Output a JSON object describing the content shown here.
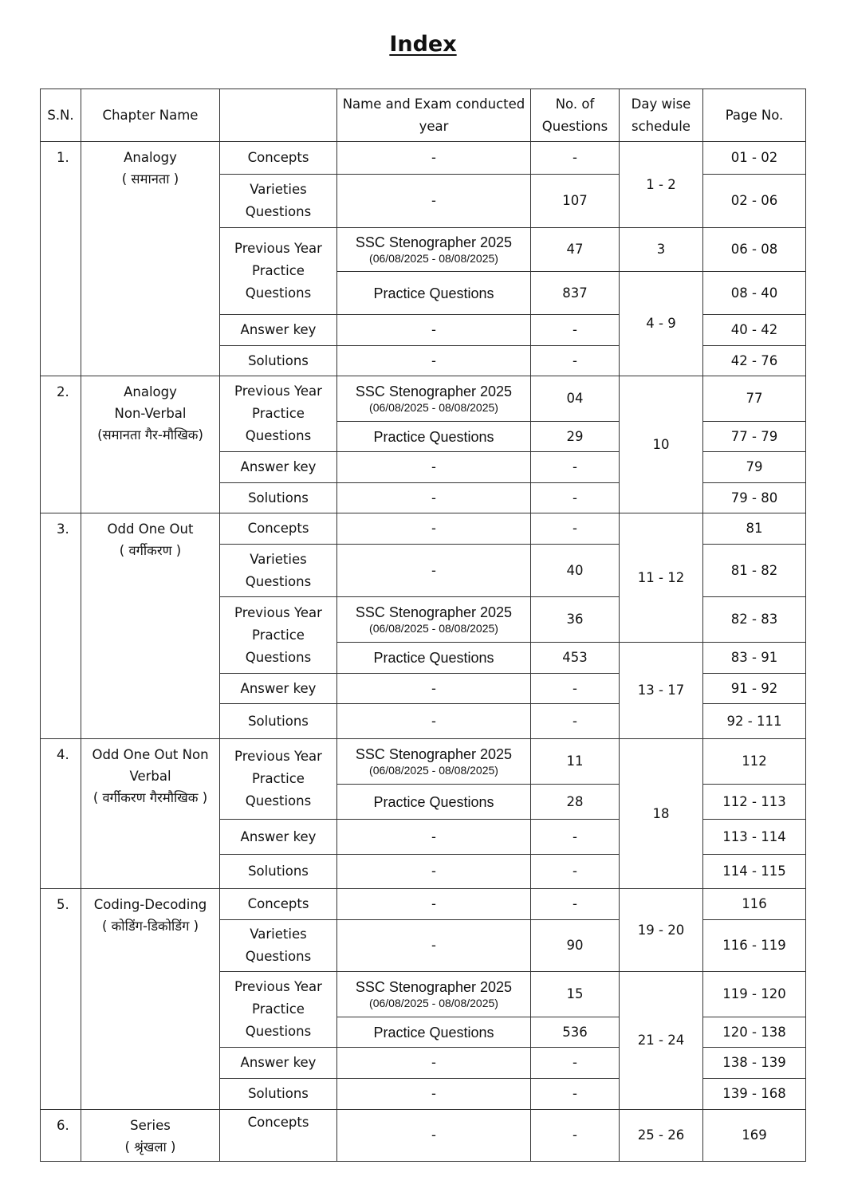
{
  "title": "Index",
  "headers": [
    "S.N.",
    "Chapter Name",
    "",
    "Name and Exam conducted year",
    "No. of Questions",
    "Day wise schedule",
    "Page No."
  ],
  "chapters": [
    {
      "sn": "1.",
      "name": [
        "Analogy",
        "( समानता )"
      ],
      "rows": [
        {
          "section": "Concepts",
          "exam": "-",
          "count": "-",
          "page": "01 - 02",
          "day": "1 - 2",
          "day_span": 2
        },
        {
          "section": "Varieties Questions",
          "exam": "-",
          "count": "107",
          "page": "02 - 06"
        },
        {
          "section": "Previous Year Practice Questions",
          "section_span": 2,
          "exam": "SSC Stenographer 2025",
          "date": "(06/08/2025 - 08/08/2025)",
          "count": "47",
          "page": "06 - 08",
          "day": "3",
          "day_span": 1
        },
        {
          "exam": "Practice Questions",
          "count": "837",
          "page": "08 - 40",
          "day": "4 - 9",
          "day_span": 3
        },
        {
          "section": "Answer key",
          "exam": "-",
          "count": "-",
          "page": "40 - 42"
        },
        {
          "section": "Solutions",
          "exam": "-",
          "count": "-",
          "page": "42 - 76"
        }
      ]
    },
    {
      "sn": "2.",
      "name": [
        "Analogy",
        "Non-Verbal",
        "(समानता गैर-मौखिक)"
      ],
      "rows": [
        {
          "section": "Previous Year Practice Questions",
          "section_span": 2,
          "exam": "SSC Stenographer 2025",
          "date": "(06/08/2025 - 08/08/2025)",
          "count": "04",
          "page": "77",
          "day": "10",
          "day_span": 4
        },
        {
          "exam": "Practice Questions",
          "count": "29",
          "page": "77 - 79"
        },
        {
          "section": "Answer key",
          "exam": "-",
          "count": "-",
          "page": "79"
        },
        {
          "section": "Solutions",
          "exam": "-",
          "count": "-",
          "page": "79 - 80"
        }
      ]
    },
    {
      "sn": "3.",
      "name": [
        "Odd One Out",
        "( वर्गीकरण )"
      ],
      "rows": [
        {
          "section": "Concepts",
          "exam": "-",
          "count": "-",
          "page": "81",
          "day": "11 - 12",
          "day_span": 3
        },
        {
          "section": "Varieties Questions",
          "exam": "-",
          "count": "40",
          "page": "81 - 82"
        },
        {
          "section": "Previous Year Practice Questions",
          "section_span": 2,
          "exam": "SSC Stenographer 2025",
          "date": "(06/08/2025 - 08/08/2025)",
          "count": "36",
          "page": "82 - 83"
        },
        {
          "exam": "Practice Questions",
          "count": "453",
          "page": "83 - 91",
          "day": "13 - 17",
          "day_span": 3
        },
        {
          "section": "Answer key",
          "exam": "-",
          "count": "-",
          "page": "91 - 92"
        },
        {
          "section": "Solutions",
          "exam": "-",
          "count": "-",
          "page": "92 - 111"
        }
      ]
    },
    {
      "sn": "4.",
      "name": [
        "Odd One Out Non",
        "Verbal",
        "( वर्गीकरण गैरमौखिक )"
      ],
      "rows": [
        {
          "section": "Previous Year Practice Questions",
          "section_span": 2,
          "exam": "SSC Stenographer 2025",
          "date": "(06/08/2025 - 08/08/2025)",
          "count": "11",
          "page": "112",
          "day": "18",
          "day_span": 4
        },
        {
          "exam": "Practice Questions",
          "count": "28",
          "page": "112 - 113"
        },
        {
          "section": "Answer key",
          "exam": "-",
          "count": "-",
          "page": "113 - 114"
        },
        {
          "section": "Solutions",
          "exam": "-",
          "count": "-",
          "page": "114 - 115"
        }
      ]
    },
    {
      "sn": "5.",
      "name": [
        "Coding-Decoding",
        "( कोडिंग-डिकोडिंग )"
      ],
      "rows": [
        {
          "section": "Concepts",
          "exam": "-",
          "count": "-",
          "page": "116",
          "day": "19 - 20",
          "day_span": 2
        },
        {
          "section": "Varieties Questions",
          "exam": "-",
          "count": "90",
          "page": "116 - 119"
        },
        {
          "section": "Previous Year Practice Questions",
          "section_span": 2,
          "exam": "SSC Stenographer 2025",
          "date": "(06/08/2025 - 08/08/2025)",
          "count": "15",
          "page": "119 - 120",
          "day": "21 - 24",
          "day_span": 4
        },
        {
          "exam": "Practice Questions",
          "count": "536",
          "page": "120 - 138"
        },
        {
          "section": "Answer key",
          "exam": "-",
          "count": "-",
          "page": "138 - 139"
        },
        {
          "section": "Solutions",
          "exam": "-",
          "count": "-",
          "page": "139 - 168"
        }
      ]
    },
    {
      "sn": "6.",
      "name": [
        "Series",
        "( श्रृंखला )"
      ],
      "rows": [
        {
          "section": "Concepts",
          "exam": "-",
          "count": "-",
          "page": "169",
          "day": "25 - 26",
          "day_span": 1
        }
      ]
    }
  ]
}
